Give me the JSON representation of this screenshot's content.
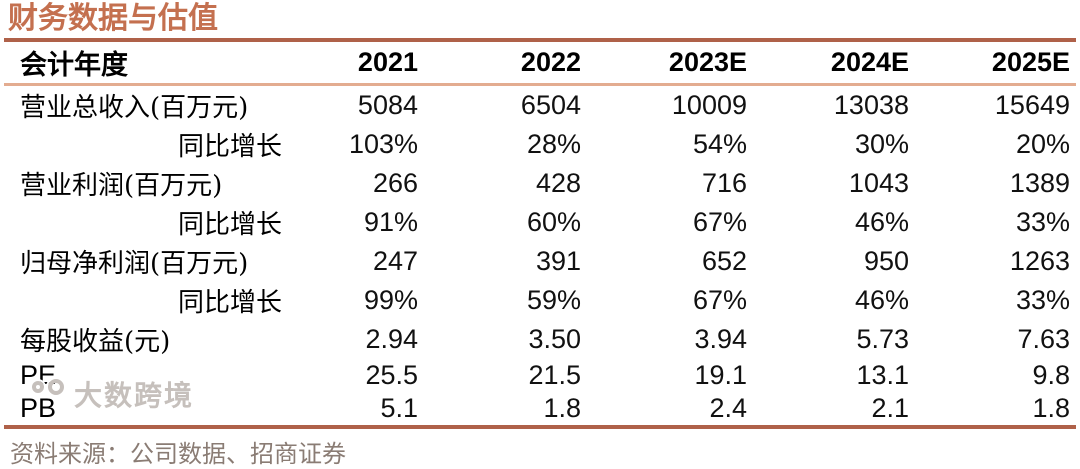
{
  "title": "财务数据与估值",
  "table": {
    "header": {
      "label": "会计年度",
      "years": [
        "2021",
        "2022",
        "2023E",
        "2024E",
        "2025E"
      ]
    },
    "rows": [
      {
        "label": "营业总收入(百万元)",
        "indent": false,
        "latin": false,
        "values": [
          "5084",
          "6504",
          "10009",
          "13038",
          "15649"
        ]
      },
      {
        "label": "同比增长",
        "indent": true,
        "latin": false,
        "values": [
          "103%",
          "28%",
          "54%",
          "30%",
          "20%"
        ]
      },
      {
        "label": "营业利润(百万元)",
        "indent": false,
        "latin": false,
        "values": [
          "266",
          "428",
          "716",
          "1043",
          "1389"
        ]
      },
      {
        "label": "同比增长",
        "indent": true,
        "latin": false,
        "values": [
          "91%",
          "60%",
          "67%",
          "46%",
          "33%"
        ]
      },
      {
        "label": "归母净利润(百万元)",
        "indent": false,
        "latin": false,
        "values": [
          "247",
          "391",
          "652",
          "950",
          "1263"
        ]
      },
      {
        "label": "同比增长",
        "indent": true,
        "latin": false,
        "values": [
          "99%",
          "59%",
          "67%",
          "46%",
          "33%"
        ]
      },
      {
        "label": "每股收益(元)",
        "indent": false,
        "latin": false,
        "values": [
          "2.94",
          "3.50",
          "3.94",
          "5.73",
          "7.63"
        ]
      },
      {
        "label": "PE",
        "indent": false,
        "latin": true,
        "values": [
          "25.5",
          "21.5",
          "19.1",
          "13.1",
          "9.8"
        ]
      },
      {
        "label": "PB",
        "indent": false,
        "latin": true,
        "values": [
          "5.1",
          "1.8",
          "2.4",
          "2.1",
          "1.8"
        ]
      }
    ]
  },
  "footer": {
    "source": "资料来源：公司数据、招商证券"
  },
  "watermark": {
    "text": "大数跨境"
  },
  "colors": {
    "accent": "#C4704F",
    "rule_dark": "#AF6149",
    "rule_light": "#E3AC90",
    "footer_text": "#8A7C74",
    "num_text": "#111111"
  }
}
